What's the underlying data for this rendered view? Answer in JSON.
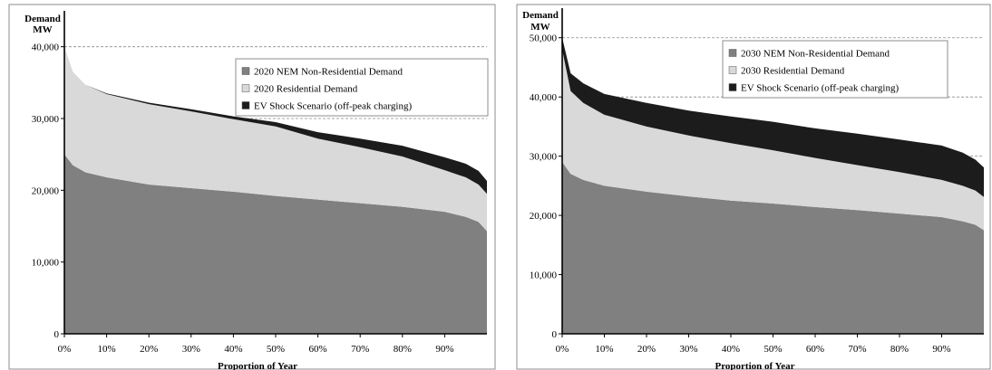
{
  "chart_data": [
    {
      "type": "area",
      "title": "",
      "ylabel_line1": "Demand",
      "ylabel_line2": "MW",
      "xlabel": "Proportion of Year",
      "ylim": [
        0,
        45000
      ],
      "xlim": [
        0,
        1
      ],
      "yticks": [
        0,
        10000,
        20000,
        30000,
        40000
      ],
      "ytick_labels": [
        "0",
        "10,000",
        "20,000",
        "30,000",
        "40,000"
      ],
      "gridlines": [
        30000,
        40000
      ],
      "xticks": [
        0,
        0.1,
        0.2,
        0.3,
        0.4,
        0.5,
        0.6,
        0.7,
        0.8,
        0.9
      ],
      "xtick_labels": [
        "0%",
        "10%",
        "20%",
        "30%",
        "40%",
        "50%",
        "60%",
        "70%",
        "80%",
        "90%"
      ],
      "legend_position": "top-right",
      "x": [
        0,
        0.02,
        0.05,
        0.1,
        0.2,
        0.3,
        0.4,
        0.5,
        0.6,
        0.7,
        0.8,
        0.9,
        0.95,
        0.98,
        1.0
      ],
      "series": [
        {
          "name": "2020 NEM Non-Residential Demand",
          "color": "#808080",
          "values": [
            25000,
            23500,
            22500,
            21800,
            20800,
            20300,
            19800,
            19200,
            18700,
            18200,
            17700,
            17000,
            16300,
            15600,
            14300
          ]
        },
        {
          "name": "2020 Residential Demand",
          "color": "#d9d9d9",
          "values": [
            15000,
            13000,
            12200,
            11600,
            11200,
            10700,
            10100,
            9700,
            8500,
            7800,
            7000,
            5800,
            5500,
            5200,
            5200
          ]
        },
        {
          "name": "EV Shock Scenario (off-peak charging)",
          "color": "#1c1c1c",
          "values": [
            0,
            0,
            0,
            100,
            200,
            300,
            400,
            600,
            900,
            1200,
            1500,
            1800,
            1900,
            1900,
            1800
          ]
        }
      ]
    },
    {
      "type": "area",
      "title": "",
      "ylabel_line1": "Demand",
      "ylabel_line2": "MW",
      "xlabel": "Proportion of Year",
      "ylim": [
        0,
        55000
      ],
      "xlim": [
        0,
        1
      ],
      "yticks": [
        0,
        10000,
        20000,
        30000,
        40000,
        50000
      ],
      "ytick_labels": [
        "0",
        "10,000",
        "20,000",
        "30,000",
        "40,000",
        "50,000"
      ],
      "gridlines": [
        30000,
        40000,
        50000
      ],
      "xticks": [
        0,
        0.1,
        0.2,
        0.3,
        0.4,
        0.5,
        0.6,
        0.7,
        0.8,
        0.9
      ],
      "xtick_labels": [
        "0%",
        "10%",
        "20%",
        "30%",
        "40%",
        "50%",
        "60%",
        "70%",
        "80%",
        "90%"
      ],
      "legend_position": "top-right",
      "x": [
        0,
        0.02,
        0.05,
        0.1,
        0.2,
        0.3,
        0.4,
        0.5,
        0.6,
        0.7,
        0.8,
        0.9,
        0.95,
        0.98,
        1.0
      ],
      "series": [
        {
          "name": "2030 NEM Non-Residential Demand",
          "color": "#808080",
          "values": [
            29000,
            27000,
            26000,
            25000,
            24000,
            23200,
            22500,
            22000,
            21400,
            20900,
            20300,
            19700,
            19000,
            18400,
            17500
          ]
        },
        {
          "name": "2030 Residential Demand",
          "color": "#d9d9d9",
          "values": [
            19000,
            14000,
            13000,
            12000,
            11000,
            10300,
            9700,
            9000,
            8300,
            7600,
            7000,
            6300,
            6000,
            5800,
            5600
          ]
        },
        {
          "name": "EV Shock Scenario (off-peak charging)",
          "color": "#1c1c1c",
          "values": [
            2000,
            3000,
            3300,
            3500,
            4000,
            4200,
            4500,
            4800,
            5000,
            5300,
            5500,
            5800,
            5600,
            5200,
            5000
          ]
        }
      ]
    }
  ]
}
